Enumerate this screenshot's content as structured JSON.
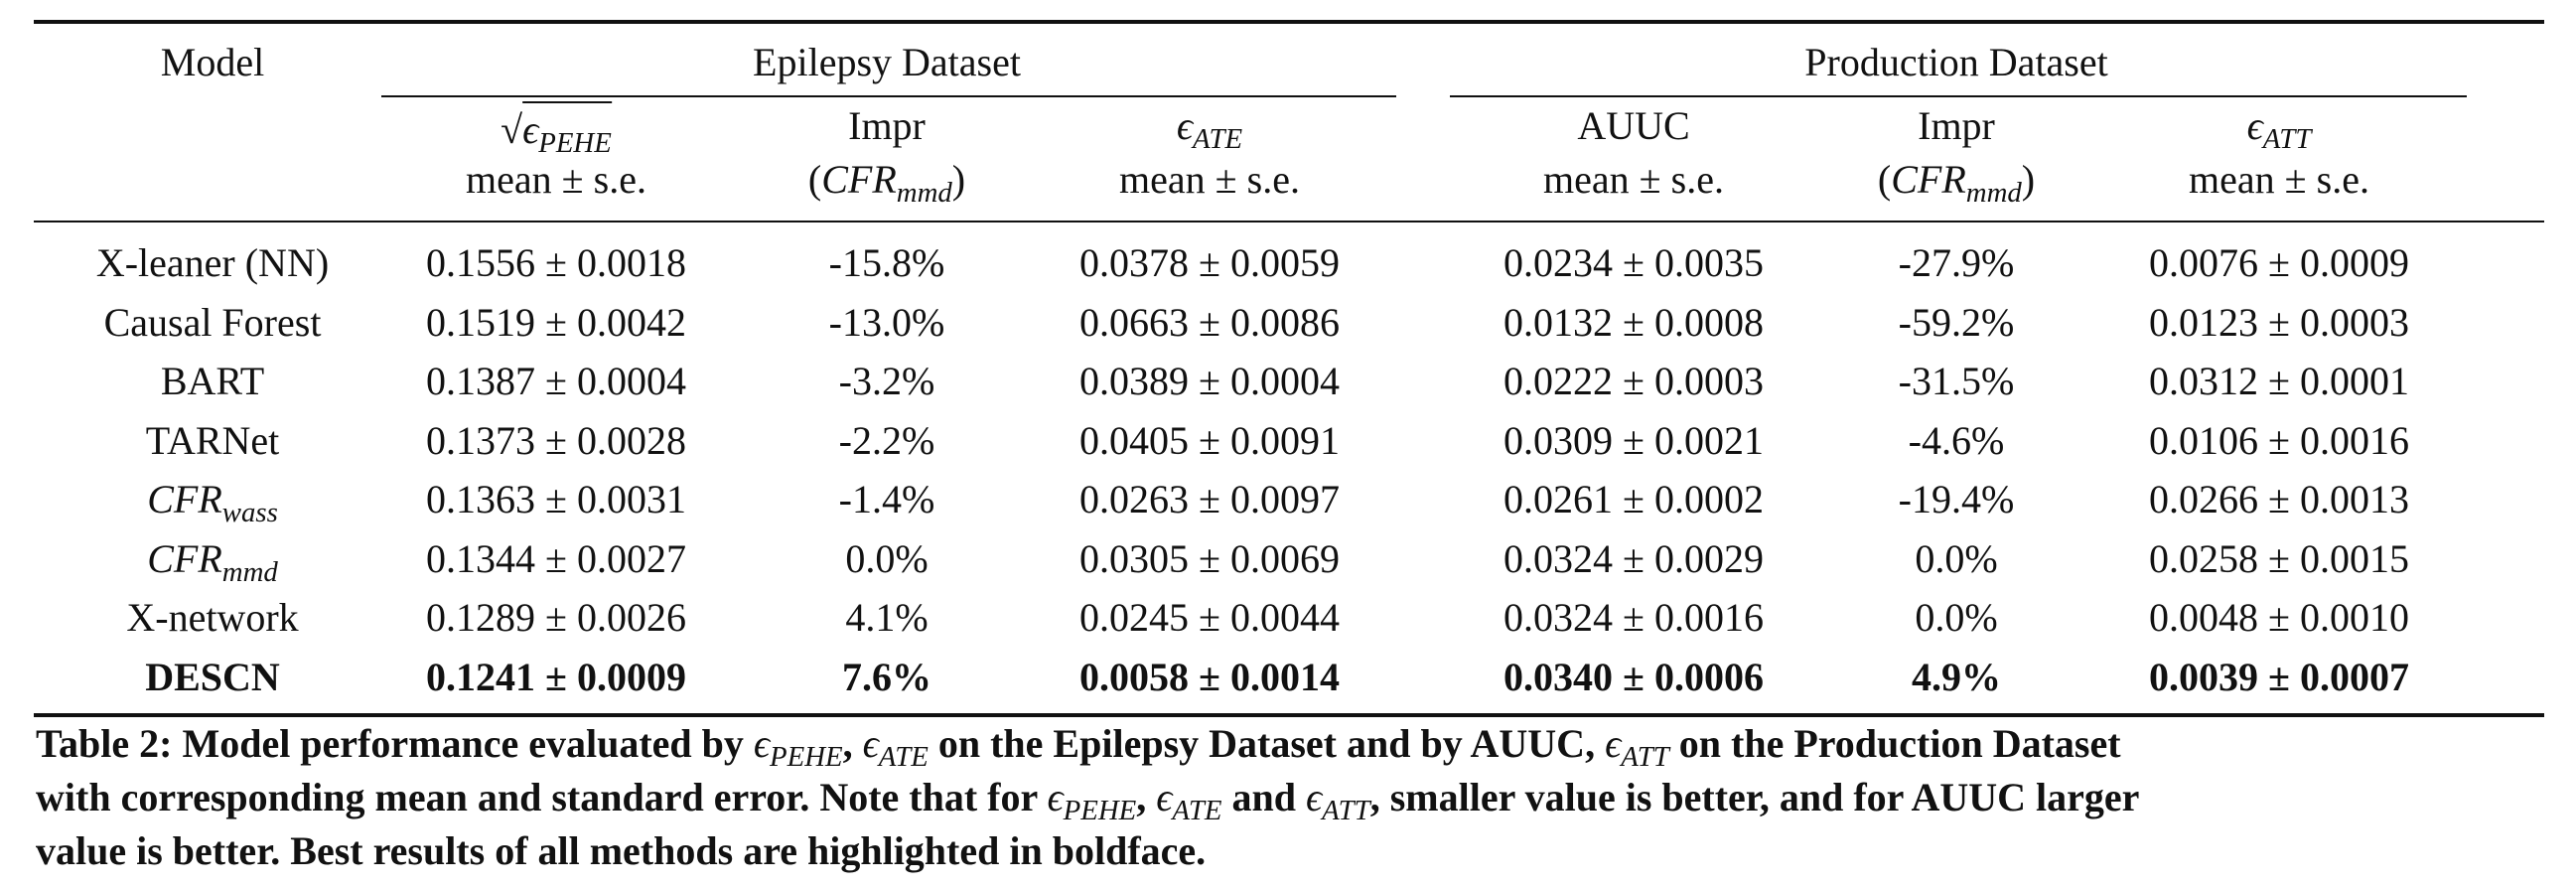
{
  "table": {
    "model_header": "Model",
    "groups": [
      {
        "label": "Epilepsy Dataset"
      },
      {
        "label": "Production Dataset"
      }
    ],
    "subheaders": [
      {
        "line1": "√ϵPEHE",
        "line2": "mean ± s.e."
      },
      {
        "line1": "Impr",
        "line2": "(CFRmmd)"
      },
      {
        "line1": "ϵATE",
        "line2": "mean ± s.e."
      },
      {
        "line1": "AUUC",
        "line2": "mean ± s.e."
      },
      {
        "line1": "Impr",
        "line2": "(CFRmmd)"
      },
      {
        "line1": "ϵATT",
        "line2": "mean ± s.e."
      }
    ],
    "rows": [
      {
        "model": "X-leaner (NN)",
        "cells": [
          "0.1556 ± 0.0018",
          "-15.8%",
          "0.0378 ± 0.0059",
          "0.0234 ± 0.0035",
          "-27.9%",
          "0.0076 ± 0.0009"
        ]
      },
      {
        "model": "Causal Forest",
        "cells": [
          "0.1519 ± 0.0042",
          "-13.0%",
          "0.0663 ± 0.0086",
          "0.0132 ± 0.0008",
          "-59.2%",
          "0.0123 ± 0.0003"
        ]
      },
      {
        "model": "BART",
        "cells": [
          "0.1387 ± 0.0004",
          "-3.2%",
          "0.0389 ± 0.0004",
          "0.0222 ± 0.0003",
          "-31.5%",
          "0.0312 ± 0.0001"
        ]
      },
      {
        "model": "TARNet",
        "cells": [
          "0.1373 ± 0.0028",
          "-2.2%",
          "0.0405 ± 0.0091",
          "0.0309 ± 0.0021",
          "-4.6%",
          "0.0106 ± 0.0016"
        ]
      },
      {
        "model": "CFRwass",
        "cells": [
          "0.1363 ± 0.0031",
          "-1.4%",
          "0.0263 ± 0.0097",
          "0.0261 ± 0.0002",
          "-19.4%",
          "0.0266 ± 0.0013"
        ]
      },
      {
        "model": "CFRmmd",
        "cells": [
          "0.1344 ± 0.0027",
          "0.0%",
          "0.0305 ± 0.0069",
          "0.0324 ± 0.0029",
          "0.0%",
          "0.0258 ± 0.0015"
        ]
      },
      {
        "model": "X-network",
        "cells": [
          "0.1289 ± 0.0026",
          "4.1%",
          "0.0245 ± 0.0044",
          "0.0324 ± 0.0016",
          "0.0%",
          "0.0048 ± 0.0010"
        ]
      },
      {
        "model": "DESCN",
        "cells": [
          "0.1241 ± 0.0009",
          "7.6%",
          "0.0058 ± 0.0014",
          "0.0340 ± 0.0006",
          "4.9%",
          "0.0039 ± 0.0007"
        ]
      }
    ]
  },
  "caption": {
    "line1": "Table 2: Model performance evaluated by ϵPEHE, ϵATE on the Epilepsy Dataset and by AUUC, ϵATT on the Production Dataset",
    "line2": "with corresponding mean and standard error. Note that for ϵPEHE, ϵATE and ϵATT, smaller value is better, and for AUUC larger",
    "line3": "value is better. Best results of all methods are highlighted in boldface."
  }
}
